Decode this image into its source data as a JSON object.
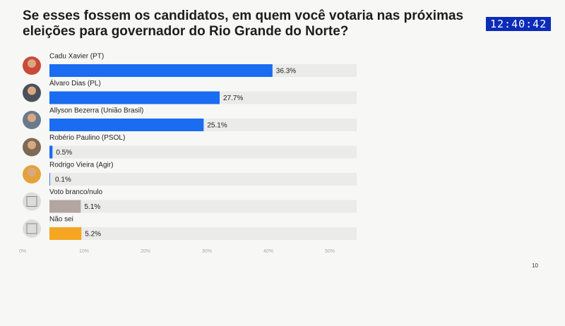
{
  "timestamp": "12:40:42",
  "page_number": "10",
  "chart_data": {
    "type": "hbar",
    "title": "Se esses fossem os candidatos, em quem você votaria nas próximas eleições para governador do Rio Grande do Norte?",
    "categories": [
      "Cadu Xavier (PT)",
      "Álvaro Dias (PL)",
      "Allyson Bezerra (União Brasil)",
      "Robério Paulino (PSOL)",
      "Rodrigo Vieira (Agir)",
      "Voto branco/nulo",
      "Não sei"
    ],
    "values": [
      36.3,
      27.7,
      25.1,
      0.5,
      0.1,
      5.1,
      5.2
    ],
    "value_labels": [
      "36.3%",
      "27.7%",
      "25.1%",
      "0.5%",
      "0.1%",
      "5.1%",
      "5.2%"
    ],
    "colors": [
      "#1a6cf0",
      "#1a6cf0",
      "#1a6cf0",
      "#1a6cf0",
      "#1a6cf0",
      "#b3a6a0",
      "#f5a623"
    ],
    "xlim": [
      0,
      50
    ],
    "xticks": [
      {
        "value": 0,
        "label": "0%"
      },
      {
        "value": 10,
        "label": "10%"
      },
      {
        "value": 20,
        "label": "20%"
      },
      {
        "value": 30,
        "label": "30%"
      },
      {
        "value": 40,
        "label": "40%"
      },
      {
        "value": 50,
        "label": "50%"
      }
    ]
  }
}
